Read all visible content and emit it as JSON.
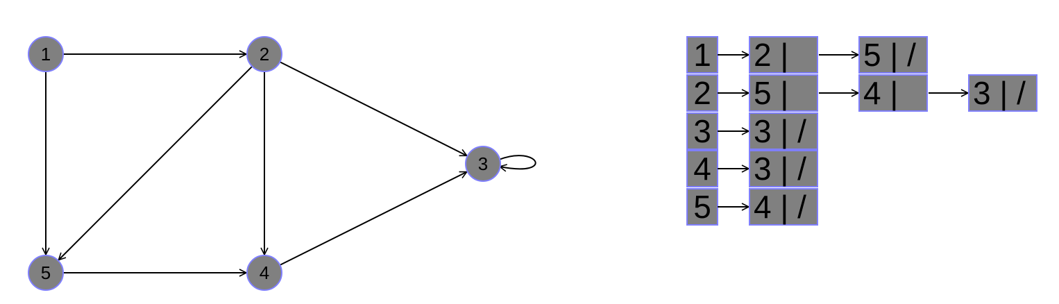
{
  "colors": {
    "node_fill": "#808080",
    "node_stroke": "#7f7fff",
    "edge": "#000000"
  },
  "graph": {
    "nodes": [
      {
        "id": "1",
        "label": "1"
      },
      {
        "id": "2",
        "label": "2"
      },
      {
        "id": "3",
        "label": "3"
      },
      {
        "id": "4",
        "label": "4"
      },
      {
        "id": "5",
        "label": "5"
      }
    ],
    "edges": [
      {
        "from": "1",
        "to": "2"
      },
      {
        "from": "1",
        "to": "5"
      },
      {
        "from": "2",
        "to": "5"
      },
      {
        "from": "2",
        "to": "4"
      },
      {
        "from": "2",
        "to": "3"
      },
      {
        "from": "3",
        "to": "3"
      },
      {
        "from": "4",
        "to": "3"
      },
      {
        "from": "5",
        "to": "4"
      }
    ]
  },
  "adjacency_list": {
    "rows": [
      {
        "vertex": "1",
        "entries": [
          "2 |",
          "5 | /"
        ]
      },
      {
        "vertex": "2",
        "entries": [
          "5 |",
          "4 |",
          "3 | /"
        ]
      },
      {
        "vertex": "3",
        "entries": [
          "3 | /"
        ]
      },
      {
        "vertex": "4",
        "entries": [
          "3 | /"
        ]
      },
      {
        "vertex": "5",
        "entries": [
          "4 | /"
        ]
      }
    ]
  }
}
